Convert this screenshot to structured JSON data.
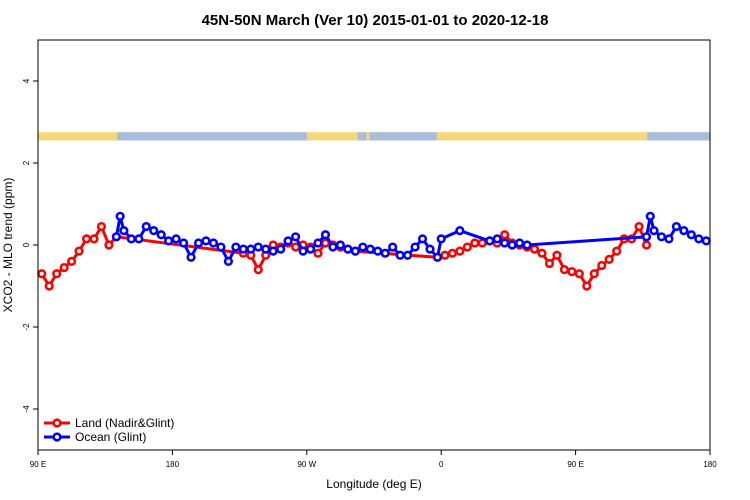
{
  "chart_data": {
    "type": "line",
    "title": "45N-50N March (Ver 10)   2015-01-01 to 2020-12-18",
    "xlabel": "Longitude (deg E)",
    "ylabel": "XCO2 - MLO trend (ppm)",
    "xlim": [
      90,
      540
    ],
    "ylim": [
      -5,
      5
    ],
    "x_ticks": [
      {
        "value": 90,
        "label": "90 E"
      },
      {
        "value": 180,
        "label": "180"
      },
      {
        "value": 270,
        "label": "90 W"
      },
      {
        "value": 360,
        "label": "0"
      },
      {
        "value": 450,
        "label": "90 E"
      },
      {
        "value": 540,
        "label": "180"
      }
    ],
    "y_ticks": [
      {
        "value": -4,
        "label": "-4"
      },
      {
        "value": -2,
        "label": "-2"
      },
      {
        "value": 0,
        "label": "0"
      },
      {
        "value": 2,
        "label": "2"
      },
      {
        "value": 4,
        "label": "4"
      }
    ],
    "grid": false,
    "legend_position": "bottom-left",
    "land_ocean_strip": {
      "ymin": 2.55,
      "ymax": 2.75,
      "land_color": "#f5d77a",
      "ocean_color": "#a6bddb",
      "ocean_ranges": [
        [
          143,
          270
        ],
        [
          304,
          310
        ],
        [
          312,
          357
        ],
        [
          498,
          540
        ]
      ]
    },
    "series": [
      {
        "name": "Land (Nadir&Glint)",
        "color": "#ff0000",
        "x": [
          92.5,
          97.5,
          102.5,
          107.5,
          112.5,
          117.5,
          122.5,
          127.5,
          132.5,
          137.5,
          142.5,
          227.5,
          232.5,
          237.5,
          242.5,
          247.5,
          252.5,
          257.5,
          262.5,
          267.5,
          272.5,
          277.5,
          282.5,
          287.5,
          292.5,
          297.5,
          302.5,
          357.5,
          362.5,
          367.5,
          372.5,
          377.5,
          382.5,
          387.5,
          392.5,
          397.5,
          402.5,
          407.5,
          412.5,
          417.5,
          422.5,
          427.5,
          432.5,
          437.5,
          442.5,
          447.5,
          452.5,
          457.5,
          462.5,
          467.5,
          472.5,
          477.5,
          482.5,
          487.5,
          492.5,
          497.5
        ],
        "y": [
          -0.7,
          -1.0,
          -0.7,
          -0.55,
          -0.4,
          -0.15,
          0.15,
          0.15,
          0.45,
          0.0,
          0.2,
          -0.2,
          -0.25,
          -0.6,
          -0.25,
          0.0,
          -0.05,
          0.05,
          -0.05,
          0.0,
          -0.05,
          -0.2,
          0.05,
          0.0,
          -0.05,
          -0.1,
          -0.15,
          -0.3,
          -0.25,
          -0.2,
          -0.15,
          -0.05,
          0.05,
          0.05,
          0.1,
          0.05,
          0.25,
          0.05,
          0.0,
          -0.05,
          -0.1,
          -0.2,
          -0.45,
          -0.25,
          -0.6,
          -0.65,
          -0.7,
          -1.0,
          -0.7,
          -0.5,
          -0.35,
          -0.15,
          0.15,
          0.15,
          0.45,
          0.0
        ]
      },
      {
        "name": "Ocean (Glint)",
        "color": "#0000ff",
        "x": [
          142.5,
          145,
          147.5,
          152.5,
          157.5,
          162.5,
          167.5,
          172.5,
          177.5,
          182.5,
          187.5,
          192.5,
          197.5,
          202.5,
          207.5,
          212.5,
          217.5,
          222.5,
          227.5,
          232.5,
          237.5,
          242.5,
          247.5,
          252.5,
          257.5,
          262.5,
          267.5,
          272.5,
          277.5,
          282.5,
          287.5,
          292.5,
          297.5,
          302.5,
          307.5,
          312.5,
          317.5,
          322.5,
          327.5,
          332.5,
          337.5,
          342.5,
          347.5,
          352.5,
          357.5,
          360,
          372.5,
          392.5,
          397.5,
          402.5,
          407.5,
          412.5,
          417.5,
          497.5,
          500,
          502.5,
          507.5,
          512.5,
          517.5,
          522.5,
          527.5,
          532.5,
          537.5
        ],
        "y": [
          0.2,
          0.7,
          0.35,
          0.15,
          0.15,
          0.45,
          0.35,
          0.25,
          0.1,
          0.15,
          0.05,
          -0.3,
          0.05,
          0.1,
          0.05,
          -0.05,
          -0.4,
          -0.05,
          -0.1,
          -0.1,
          -0.05,
          -0.1,
          -0.15,
          -0.1,
          0.1,
          0.2,
          -0.15,
          -0.1,
          0.05,
          0.25,
          -0.05,
          0.0,
          -0.1,
          -0.15,
          -0.05,
          -0.1,
          -0.15,
          -0.2,
          -0.05,
          -0.25,
          -0.25,
          -0.05,
          0.15,
          -0.1,
          -0.3,
          0.15,
          0.35,
          0.1,
          0.15,
          0.05,
          0.0,
          0.05,
          0.0,
          0.2,
          0.7,
          0.35,
          0.2,
          0.15,
          0.45,
          0.35,
          0.25,
          0.15,
          0.1
        ]
      }
    ]
  }
}
